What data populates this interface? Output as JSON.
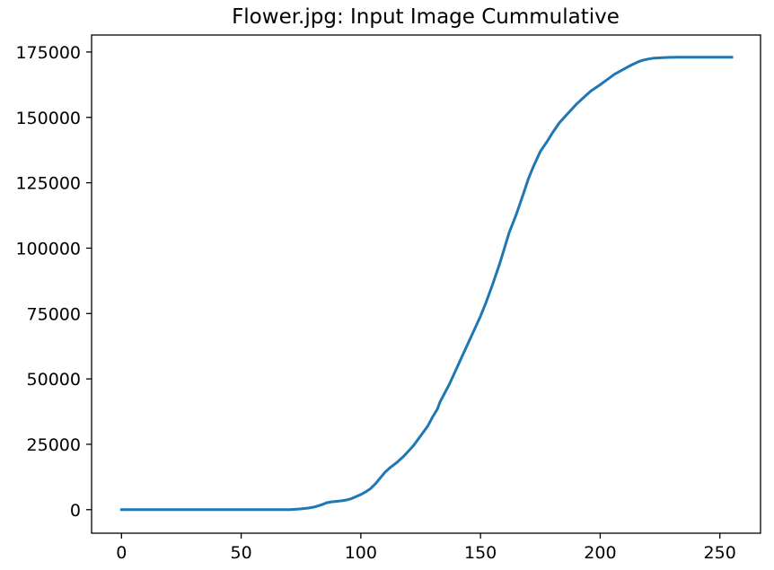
{
  "chart_data": {
    "type": "line",
    "title": "Flower.jpg: Input Image Cummulative",
    "xlabel": "",
    "ylabel": "",
    "xlim": [
      -12.5,
      267
    ],
    "ylim": [
      -9000,
      181500
    ],
    "xticks": [
      0,
      50,
      100,
      150,
      200,
      250
    ],
    "xtick_labels": [
      "0",
      "50",
      "100",
      "150",
      "200",
      "250"
    ],
    "yticks": [
      0,
      25000,
      50000,
      75000,
      100000,
      125000,
      150000,
      175000
    ],
    "ytick_labels": [
      "0",
      "25000",
      "50000",
      "75000",
      "100000",
      "125000",
      "150000",
      "175000"
    ],
    "grid": false,
    "series": [
      {
        "color": "#1f77b4",
        "x": [
          0,
          60,
          70,
          72,
          75,
          78,
          80,
          82,
          84,
          86,
          88,
          90,
          92,
          94,
          96,
          98,
          100,
          102,
          104,
          106,
          108,
          110,
          112,
          115,
          118,
          120,
          122,
          124,
          126,
          128,
          130,
          132,
          133,
          135,
          137,
          140,
          142,
          145,
          148,
          150,
          152,
          155,
          158,
          160,
          162,
          165,
          168,
          170,
          172,
          175,
          178,
          180,
          183,
          186,
          190,
          193,
          196,
          200,
          203,
          206,
          210,
          213,
          216,
          218,
          220,
          222,
          225,
          228,
          232,
          240,
          255
        ],
        "y": [
          0,
          0,
          0,
          100,
          300,
          600,
          900,
          1400,
          2000,
          2700,
          3000,
          3200,
          3400,
          3700,
          4200,
          5000,
          5800,
          6800,
          8000,
          9800,
          12000,
          14200,
          15900,
          18000,
          20500,
          22500,
          24500,
          27000,
          29500,
          32000,
          35500,
          38500,
          41000,
          44500,
          48000,
          54000,
          58000,
          64000,
          70000,
          74000,
          78500,
          86000,
          94000,
          100000,
          106000,
          113000,
          121000,
          126500,
          131000,
          137000,
          141000,
          144000,
          148000,
          151000,
          155000,
          157500,
          160000,
          162500,
          164500,
          166500,
          168500,
          170000,
          171300,
          171900,
          172300,
          172600,
          172800,
          172900,
          173000,
          173000,
          173000
        ]
      }
    ]
  }
}
